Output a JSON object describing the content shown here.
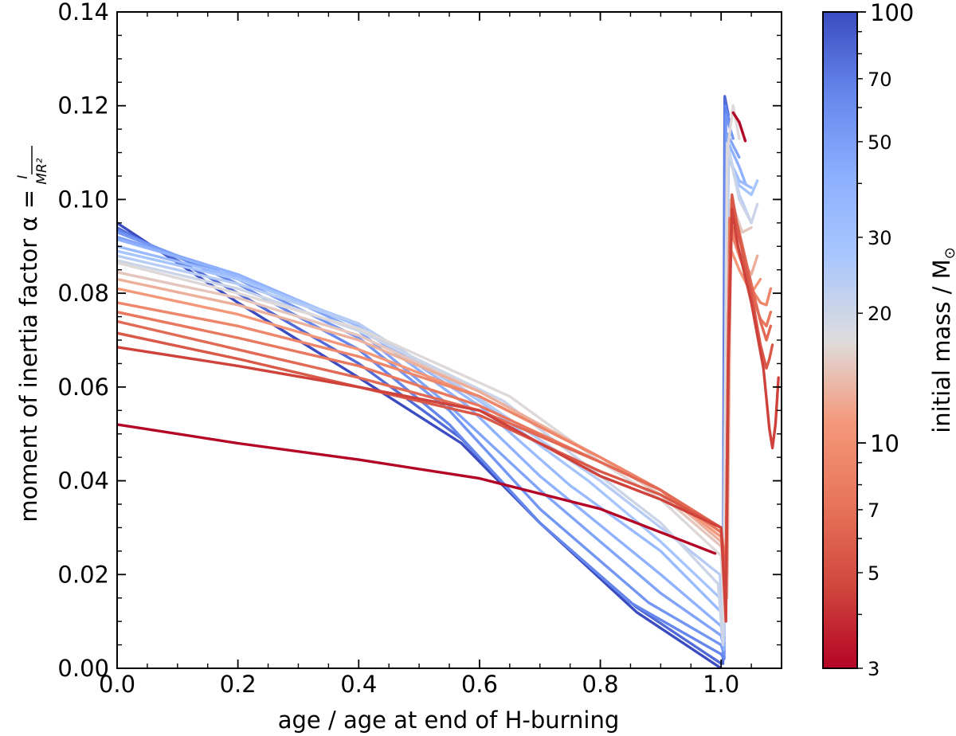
{
  "chart_data": {
    "type": "line",
    "title": "",
    "xlabel": "age / age at end of H-burning",
    "ylabel": "moment of inertia factor α = I / MR²",
    "ylabel_parts": {
      "prefix": "moment of inertia factor α = ",
      "numerator": "I",
      "denominator": "MR²"
    },
    "xlim": [
      0.0,
      1.1
    ],
    "ylim": [
      0.0,
      0.14
    ],
    "xticks": [
      "0.0",
      "0.2",
      "0.4",
      "0.6",
      "0.8",
      "1.0"
    ],
    "yticks": [
      "0.00",
      "0.02",
      "0.04",
      "0.06",
      "0.08",
      "0.10",
      "0.12",
      "0.14"
    ],
    "colorbar": {
      "label": "initial mass / M⊙",
      "label_parts": {
        "text": "initial mass / M",
        "symbol": "⊙"
      },
      "scale": "log",
      "range": [
        3,
        100
      ],
      "colormap": "coolwarm_r",
      "ticks": [
        {
          "value": 3,
          "label": "3"
        },
        {
          "value": 5,
          "label": "5"
        },
        {
          "value": 7,
          "label": "7"
        },
        {
          "value": 10,
          "label": "10"
        },
        {
          "value": 20,
          "label": "20"
        },
        {
          "value": 30,
          "label": "30"
        },
        {
          "value": 50,
          "label": "50"
        },
        {
          "value": 70,
          "label": "70"
        },
        {
          "value": 100,
          "label": "100"
        }
      ]
    },
    "series": [
      {
        "name": "3 Msun",
        "mass": 3,
        "x": [
          0.0,
          0.2,
          0.4,
          0.6,
          0.8,
          0.9,
          0.99
        ],
        "y": [
          0.052,
          0.048,
          0.0445,
          0.0405,
          0.034,
          0.029,
          0.0245
        ]
      },
      {
        "name": "3 Msun post-MS",
        "mass": 3,
        "x": [
          1.02,
          1.03,
          1.04
        ],
        "y": [
          0.1185,
          0.1165,
          0.1125
        ]
      },
      {
        "name": "4.5 Msun",
        "mass": 4.5,
        "x": [
          0.0,
          0.2,
          0.4,
          0.6,
          0.8,
          0.9,
          1.0,
          1.008,
          1.012,
          1.018,
          1.028,
          1.05,
          1.07,
          1.08,
          1.085,
          1.09,
          1.095
        ],
        "y": [
          0.0685,
          0.0645,
          0.06,
          0.055,
          0.041,
          0.036,
          0.03,
          0.01,
          0.065,
          0.098,
          0.09,
          0.078,
          0.064,
          0.051,
          0.047,
          0.052,
          0.062
        ]
      },
      {
        "name": "5.5 Msun",
        "mass": 5.5,
        "x": [
          0.0,
          0.2,
          0.4,
          0.6,
          0.8,
          0.9,
          1.0,
          1.008,
          1.012,
          1.018,
          1.03,
          1.05,
          1.065,
          1.075,
          1.08,
          1.085
        ],
        "y": [
          0.0715,
          0.066,
          0.06,
          0.054,
          0.042,
          0.037,
          0.03,
          0.015,
          0.07,
          0.101,
          0.092,
          0.08,
          0.069,
          0.064,
          0.066,
          0.069
        ]
      },
      {
        "name": "6.5 Msun",
        "mass": 6.5,
        "x": [
          0.0,
          0.2,
          0.4,
          0.6,
          0.8,
          0.9,
          1.0,
          1.008,
          1.012,
          1.018,
          1.03,
          1.05,
          1.065,
          1.075,
          1.082
        ],
        "y": [
          0.074,
          0.068,
          0.062,
          0.055,
          0.044,
          0.038,
          0.03,
          0.018,
          0.075,
          0.099,
          0.093,
          0.082,
          0.074,
          0.07,
          0.073
        ]
      },
      {
        "name": "7.5 Msun",
        "mass": 7.5,
        "x": [
          0.0,
          0.2,
          0.4,
          0.6,
          0.8,
          0.9,
          1.0,
          1.008,
          1.014,
          1.03,
          1.05,
          1.065,
          1.075,
          1.082
        ],
        "y": [
          0.076,
          0.0705,
          0.0645,
          0.056,
          0.044,
          0.038,
          0.029,
          0.02,
          0.096,
          0.089,
          0.08,
          0.0745,
          0.073,
          0.076
        ]
      },
      {
        "name": "9 Msun",
        "mass": 9,
        "x": [
          0.0,
          0.2,
          0.4,
          0.6,
          0.8,
          0.9,
          1.0,
          1.008,
          1.014,
          1.03,
          1.05,
          1.065,
          1.075,
          1.082
        ],
        "y": [
          0.078,
          0.073,
          0.0665,
          0.058,
          0.045,
          0.038,
          0.029,
          0.022,
          0.094,
          0.088,
          0.081,
          0.078,
          0.0775,
          0.081
        ]
      },
      {
        "name": "11 Msun",
        "mass": 11,
        "x": [
          0.0,
          0.2,
          0.4,
          0.6,
          0.8,
          0.9,
          1.0,
          1.008,
          1.014,
          1.03,
          1.05,
          1.065
        ],
        "y": [
          0.081,
          0.0755,
          0.068,
          0.058,
          0.045,
          0.038,
          0.028,
          0.02,
          0.09,
          0.085,
          0.08,
          0.083
        ]
      },
      {
        "name": "13 Msun",
        "mass": 13,
        "x": [
          0.0,
          0.2,
          0.4,
          0.6,
          0.8,
          0.9,
          1.0,
          1.01,
          1.016,
          1.035,
          1.05,
          1.06
        ],
        "y": [
          0.083,
          0.0775,
          0.07,
          0.059,
          0.045,
          0.038,
          0.027,
          0.02,
          0.093,
          0.087,
          0.084,
          0.088
        ]
      },
      {
        "name": "15 Msun",
        "mass": 15,
        "x": [
          0.0,
          0.2,
          0.4,
          0.6,
          0.8,
          0.9,
          1.0,
          1.01,
          1.016,
          1.035,
          1.05
        ],
        "y": [
          0.0845,
          0.079,
          0.071,
          0.059,
          0.045,
          0.037,
          0.026,
          0.015,
          0.1,
          0.093,
          0.094
        ]
      },
      {
        "name": "17 Msun",
        "mass": 17,
        "x": [
          0.0,
          0.2,
          0.4,
          0.65,
          0.8,
          0.9,
          1.0,
          1.005,
          1.01,
          1.02,
          1.03
        ],
        "y": [
          0.0865,
          0.08,
          0.0725,
          0.058,
          0.044,
          0.036,
          0.024,
          0.01,
          0.11,
          0.12,
          0.113
        ]
      },
      {
        "name": "20 Msun",
        "mass": 20,
        "x": [
          0.0,
          0.2,
          0.4,
          0.64,
          0.8,
          0.9,
          0.995,
          1.003,
          1.01,
          1.03,
          1.05,
          1.06
        ],
        "y": [
          0.087,
          0.081,
          0.072,
          0.057,
          0.041,
          0.031,
          0.018,
          0.005,
          0.112,
          0.1,
          0.095,
          0.099
        ]
      },
      {
        "name": "24 Msun",
        "mass": 24,
        "x": [
          0.0,
          0.2,
          0.4,
          0.6,
          0.8,
          0.9,
          0.998,
          1.005,
          1.012,
          1.03,
          1.05
        ],
        "y": [
          0.088,
          0.082,
          0.0735,
          0.0575,
          0.04,
          0.03,
          0.02,
          0.007,
          0.111,
          0.101,
          0.095
        ]
      },
      {
        "name": "28 Msun",
        "mass": 28,
        "x": [
          0.0,
          0.2,
          0.4,
          0.6,
          0.78,
          0.9,
          0.998,
          1.005,
          1.012,
          1.03,
          1.05,
          1.06
        ],
        "y": [
          0.089,
          0.083,
          0.0735,
          0.057,
          0.04,
          0.027,
          0.015,
          0.006,
          0.109,
          0.103,
          0.101,
          0.104
        ]
      },
      {
        "name": "34 Msun",
        "mass": 34,
        "x": [
          0.0,
          0.2,
          0.4,
          0.6,
          0.75,
          0.9,
          1.0,
          1.005,
          1.012,
          1.03,
          1.05
        ],
        "y": [
          0.09,
          0.0835,
          0.073,
          0.056,
          0.039,
          0.025,
          0.012,
          0.005,
          0.109,
          0.104,
          0.1025
        ]
      },
      {
        "name": "40 Msun",
        "mass": 40,
        "x": [
          0.0,
          0.2,
          0.4,
          0.58,
          0.7,
          0.9,
          1.0,
          1.005,
          1.012,
          1.03,
          1.04
        ],
        "y": [
          0.0915,
          0.084,
          0.073,
          0.056,
          0.041,
          0.02,
          0.009,
          0.004,
          0.112,
          0.107,
          0.1035
        ]
      },
      {
        "name": "47 Msun",
        "mass": 47,
        "x": [
          0.0,
          0.2,
          0.4,
          0.55,
          0.7,
          0.9,
          1.0,
          1.005,
          1.01,
          1.03
        ],
        "y": [
          0.092,
          0.084,
          0.072,
          0.056,
          0.038,
          0.016,
          0.007,
          0.004,
          0.114,
          0.109
        ]
      },
      {
        "name": "55 Msun",
        "mass": 55,
        "x": [
          0.0,
          0.2,
          0.4,
          0.55,
          0.7,
          0.88,
          1.0,
          1.005,
          1.008,
          1.02
        ],
        "y": [
          0.093,
          0.083,
          0.0705,
          0.055,
          0.034,
          0.014,
          0.005,
          0.003,
          0.118,
          0.113
        ]
      },
      {
        "name": "65 Msun",
        "mass": 65,
        "x": [
          0.0,
          0.2,
          0.4,
          0.55,
          0.7,
          0.85,
          1.0,
          1.005,
          1.007,
          1.015
        ],
        "y": [
          0.0935,
          0.082,
          0.068,
          0.052,
          0.031,
          0.014,
          0.003,
          0.002,
          0.12,
          0.116
        ]
      },
      {
        "name": "80 Msun",
        "mass": 80,
        "x": [
          0.0,
          0.2,
          0.4,
          0.57,
          0.7,
          0.86,
          1.0,
          1.003,
          1.006,
          1.012
        ],
        "y": [
          0.094,
          0.08,
          0.065,
          0.049,
          0.031,
          0.013,
          0.001,
          0.001,
          0.122,
          0.118
        ]
      },
      {
        "name": "100 Msun",
        "mass": 100,
        "x": [
          0.0,
          0.2,
          0.4,
          0.57,
          0.7,
          0.86,
          1.0
        ],
        "y": [
          0.095,
          0.078,
          0.062,
          0.048,
          0.031,
          0.012,
          0.0
        ]
      }
    ]
  }
}
